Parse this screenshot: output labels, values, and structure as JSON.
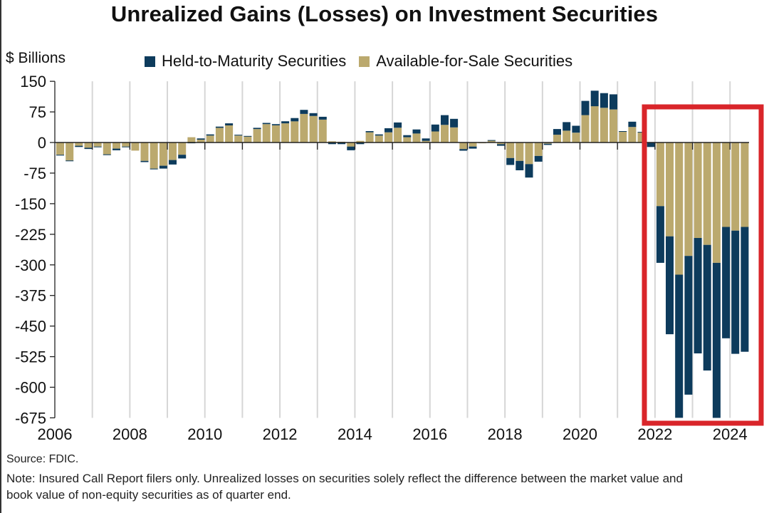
{
  "title": "Unrealized Gains (Losses) on Investment Securities",
  "unit_label": "$ Billions",
  "legend": [
    {
      "name": "Held-to-Maturity Securities",
      "color": "#0d3b5c"
    },
    {
      "name": "Available-for-Sale Securities",
      "color": "#bba96e"
    }
  ],
  "source": "Source: FDIC.",
  "note": "Note: Insured Call Report filers only. Unrealized losses on securities solely reflect the difference between the market value and book value of non-equity securities as of quarter end.",
  "highlight": {
    "description": "Red box around 2022–2024 losses",
    "color": "#d9252a",
    "from_quarter": "2021Q4",
    "to_quarter": "2024Q2"
  },
  "chart_data": {
    "type": "bar",
    "stacked": true,
    "title": "Unrealized Gains (Losses) on Investment Securities",
    "xlabel": "",
    "ylabel": "$ Billions",
    "ylim": [
      -675,
      150
    ],
    "yticks": [
      150,
      75,
      0,
      -75,
      -150,
      -225,
      -300,
      -375,
      -450,
      -525,
      -600,
      -675
    ],
    "xticks": [
      "2006",
      "2008",
      "2010",
      "2012",
      "2014",
      "2016",
      "2018",
      "2020",
      "2022",
      "2024"
    ],
    "x_start_year": 2006,
    "grid": "vertical yearly gridlines",
    "legend_position": "top",
    "categories": [
      "2006Q1",
      "2006Q2",
      "2006Q3",
      "2006Q4",
      "2007Q1",
      "2007Q2",
      "2007Q3",
      "2007Q4",
      "2008Q1",
      "2008Q2",
      "2008Q3",
      "2008Q4",
      "2009Q1",
      "2009Q2",
      "2009Q3",
      "2009Q4",
      "2010Q1",
      "2010Q2",
      "2010Q3",
      "2010Q4",
      "2011Q1",
      "2011Q2",
      "2011Q3",
      "2011Q4",
      "2012Q1",
      "2012Q2",
      "2012Q3",
      "2012Q4",
      "2013Q1",
      "2013Q2",
      "2013Q3",
      "2013Q4",
      "2014Q1",
      "2014Q2",
      "2014Q3",
      "2014Q4",
      "2015Q1",
      "2015Q2",
      "2015Q3",
      "2015Q4",
      "2016Q1",
      "2016Q2",
      "2016Q3",
      "2016Q4",
      "2017Q1",
      "2017Q2",
      "2017Q3",
      "2017Q4",
      "2018Q1",
      "2018Q2",
      "2018Q3",
      "2018Q4",
      "2019Q1",
      "2019Q2",
      "2019Q3",
      "2019Q4",
      "2020Q1",
      "2020Q2",
      "2020Q3",
      "2020Q4",
      "2021Q1",
      "2021Q2",
      "2021Q3",
      "2021Q4",
      "2022Q1",
      "2022Q2",
      "2022Q3",
      "2022Q4",
      "2023Q1",
      "2023Q2",
      "2023Q3",
      "2023Q4",
      "2024Q1",
      "2024Q2"
    ],
    "series": [
      {
        "name": "Available-for-Sale Securities",
        "color": "#bba96e",
        "values": [
          -30,
          -44,
          -8,
          -13,
          -10,
          -29,
          -15,
          -10,
          -20,
          -45,
          -64,
          -57,
          -43,
          -30,
          13,
          7,
          17,
          36,
          42,
          17,
          15,
          33,
          45,
          42,
          47,
          52,
          70,
          65,
          56,
          3,
          2,
          -10,
          4,
          25,
          17,
          25,
          36,
          13,
          22,
          4,
          27,
          43,
          37,
          -16,
          -10,
          -2,
          5,
          -4,
          -38,
          -45,
          -53,
          -33,
          -3,
          19,
          29,
          24,
          67,
          89,
          85,
          81,
          27,
          38,
          25,
          0,
          -156,
          -230,
          -324,
          -278,
          -234,
          -251,
          -295,
          -207,
          -216,
          -207
        ]
      },
      {
        "name": "Held-to-Maturity Securities",
        "color": "#0d3b5c",
        "values": [
          -2,
          -2,
          -3,
          -3,
          -1,
          -2,
          -4,
          -1,
          0,
          -3,
          -2,
          -7,
          -11,
          -9,
          -2,
          3,
          3,
          3,
          5,
          2,
          1,
          3,
          3,
          3,
          5,
          8,
          10,
          7,
          7,
          -4,
          -4,
          -9,
          -4,
          3,
          3,
          10,
          13,
          5,
          10,
          6,
          17,
          24,
          21,
          -4,
          -5,
          0,
          1,
          -4,
          -17,
          -23,
          -33,
          -14,
          -3,
          14,
          21,
          17,
          35,
          38,
          36,
          37,
          1,
          13,
          1,
          -11,
          -139,
          -240,
          -351,
          -340,
          -283,
          -308,
          -380,
          -273,
          -302,
          -306
        ]
      }
    ]
  }
}
